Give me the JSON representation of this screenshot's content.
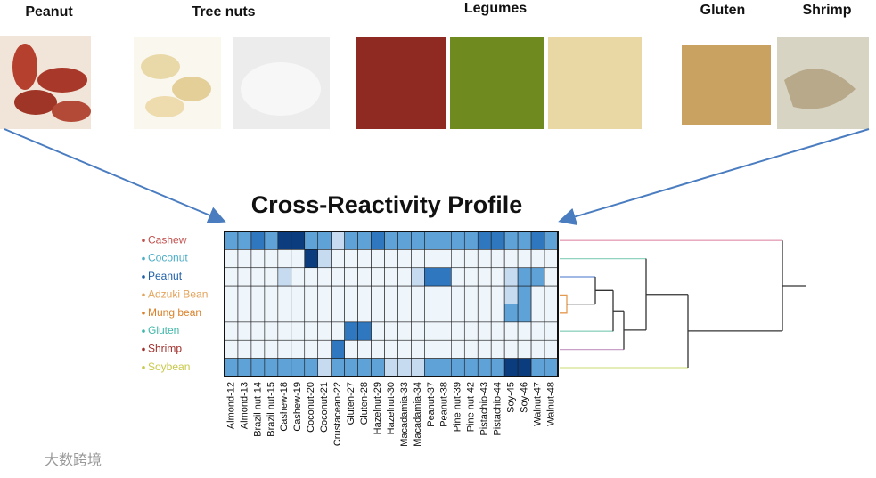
{
  "photo_labels": [
    "Peanut",
    "Tree nuts",
    "Legumes",
    "Gluten",
    "Shrimp"
  ],
  "chart_data": {
    "type": "heatmap",
    "title": "Cross-Reactivity Profile",
    "rows": [
      "Cashew",
      "Coconut",
      "Peanut",
      "Adzuki Bean",
      "Mung bean",
      "Gluten",
      "Shrimp",
      "Soybean"
    ],
    "row_colors": [
      "#c0504d",
      "#4bacc6",
      "#1f5fa8",
      "#e3a35a",
      "#d9822b",
      "#3fb7a8",
      "#a0302c",
      "#c8c84a"
    ],
    "columns": [
      "Almond-12",
      "Almond-13",
      "Brazil nut-14",
      "Brazil nut-15",
      "Cashew-18",
      "Cashew-19",
      "Coconut-20",
      "Coconut-21",
      "Crustacean-22",
      "Gluten-27",
      "Gluten-28",
      "Hazelnut-29",
      "Hazelnut-30",
      "Macadamia-33",
      "Macadamia-34",
      "Peanut-37",
      "Peanut-38",
      "Pine nut-39",
      "Pine nut-42",
      "Pistachio-43",
      "Pistachio-44",
      "Soy-45",
      "Soy-46",
      "Walnut-47",
      "Walnut-48"
    ],
    "palette": [
      "#eef5fb",
      "#c6dbef",
      "#5fa2d8",
      "#2f78c0",
      "#0b3d7e"
    ],
    "values": [
      [
        2,
        2,
        3,
        2,
        4,
        4,
        2,
        2,
        1,
        2,
        2,
        3,
        2,
        2,
        2,
        2,
        2,
        2,
        2,
        3,
        3,
        2,
        2,
        3,
        2
      ],
      [
        0,
        0,
        0,
        0,
        0,
        0,
        4,
        1,
        0,
        0,
        0,
        0,
        0,
        0,
        0,
        0,
        0,
        0,
        0,
        0,
        0,
        0,
        0,
        0,
        0
      ],
      [
        0,
        0,
        0,
        0,
        1,
        0,
        0,
        0,
        0,
        0,
        0,
        0,
        0,
        0,
        1,
        3,
        3,
        0,
        0,
        0,
        0,
        1,
        2,
        2,
        0
      ],
      [
        0,
        0,
        0,
        0,
        0,
        0,
        0,
        0,
        0,
        0,
        0,
        0,
        0,
        0,
        0,
        0,
        0,
        0,
        0,
        0,
        0,
        1,
        2,
        0,
        0
      ],
      [
        0,
        0,
        0,
        0,
        0,
        0,
        0,
        0,
        0,
        0,
        0,
        0,
        0,
        0,
        0,
        0,
        0,
        0,
        0,
        0,
        0,
        2,
        2,
        0,
        0
      ],
      [
        0,
        0,
        0,
        0,
        0,
        0,
        0,
        0,
        0,
        3,
        3,
        0,
        0,
        0,
        0,
        0,
        0,
        0,
        0,
        0,
        0,
        0,
        0,
        0,
        0
      ],
      [
        0,
        0,
        0,
        0,
        0,
        0,
        0,
        0,
        3,
        0,
        0,
        0,
        0,
        0,
        0,
        0,
        0,
        0,
        0,
        0,
        0,
        0,
        0,
        0,
        0
      ],
      [
        2,
        2,
        2,
        2,
        2,
        2,
        2,
        1,
        2,
        2,
        2,
        2,
        1,
        1,
        1,
        2,
        2,
        2,
        2,
        2,
        2,
        4,
        4,
        2,
        2
      ]
    ]
  },
  "watermark": "大数跨境"
}
